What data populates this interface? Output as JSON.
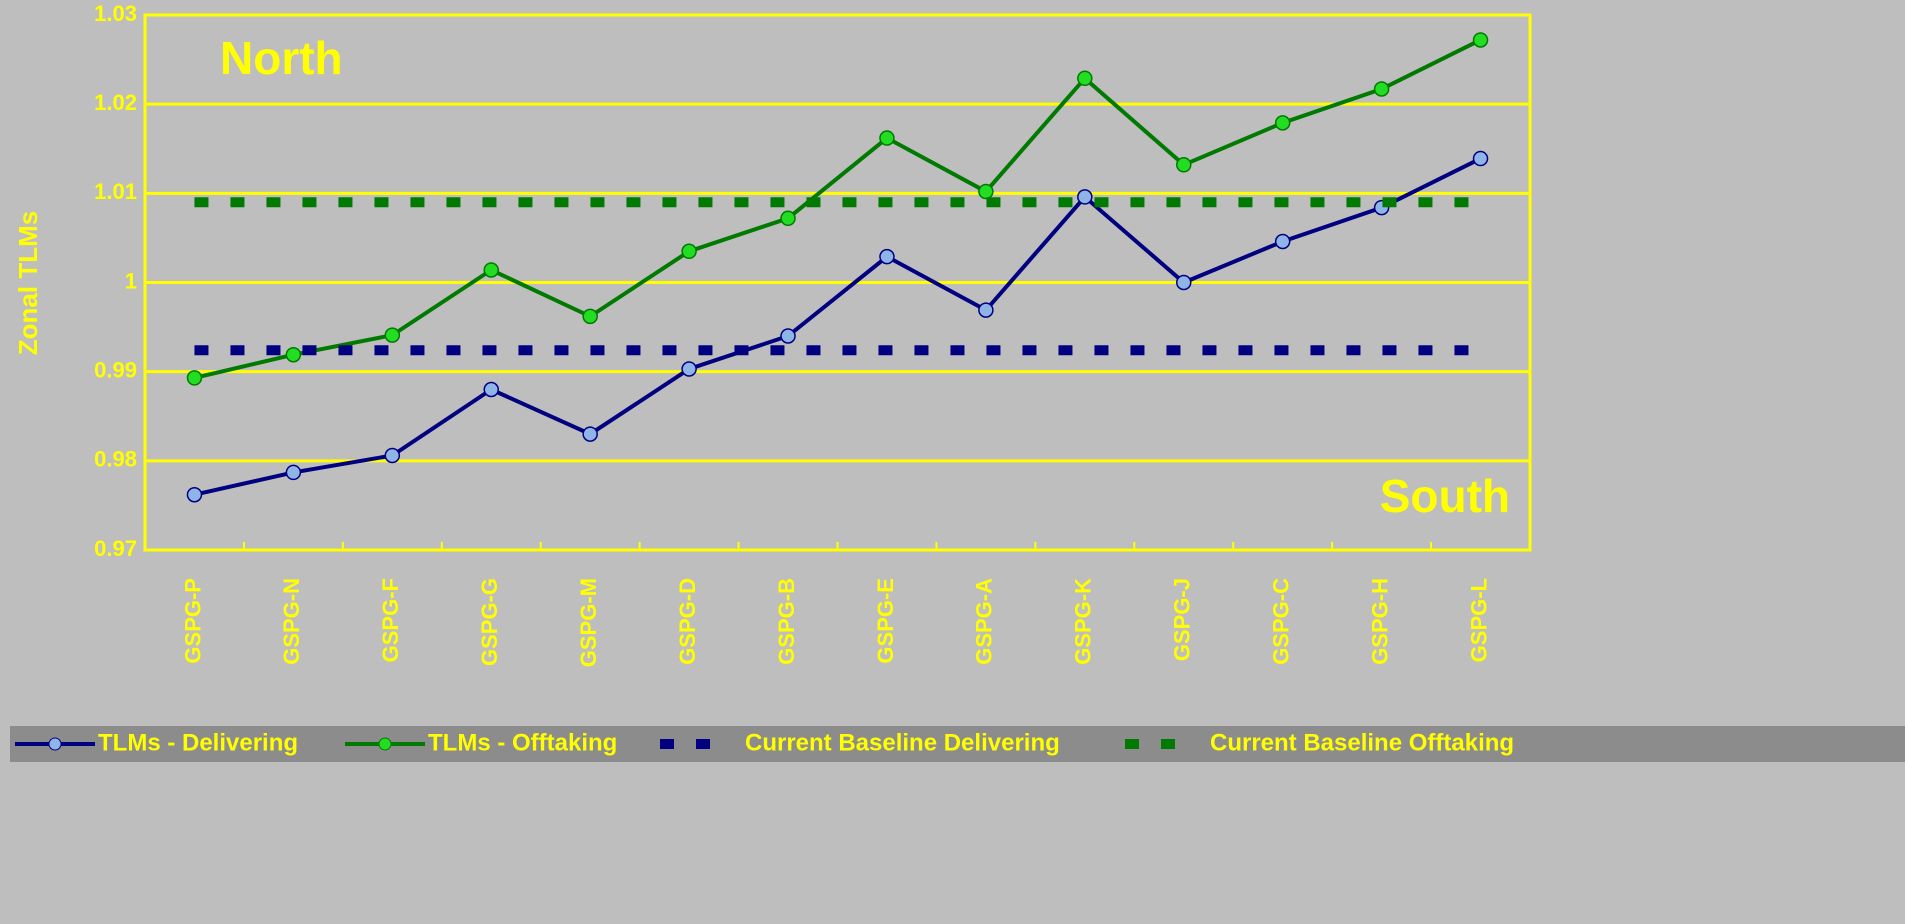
{
  "chart_data": {
    "type": "line",
    "ylabel": "Zonal TLMs",
    "annotations": [
      "North",
      "South"
    ],
    "categories": [
      "GSPG-P",
      "GSPG-N",
      "GSPG-F",
      "GSPG-G",
      "GSPG-M",
      "GSPG-D",
      "GSPG-B",
      "GSPG-E",
      "GSPG-A",
      "GSPG-K",
      "GSPG-J",
      "GSPG-C",
      "GSPG-H",
      "GSPG-L"
    ],
    "series": [
      {
        "name": "TLMs - Delivering",
        "color": "#000080",
        "marker_color": "#8fb4e8",
        "marker": true,
        "dashed": false,
        "values": [
          0.9762,
          0.9787,
          0.9806,
          0.988,
          0.983,
          0.9903,
          0.994,
          1.0029,
          0.9969,
          1.0096,
          1.0,
          1.0046,
          1.0084,
          1.0139
        ]
      },
      {
        "name": "TLMs - Offtaking",
        "color": "#007a00",
        "marker_color": "#22dd22",
        "marker": true,
        "dashed": false,
        "values": [
          0.9893,
          0.9919,
          0.9941,
          1.0014,
          0.9962,
          1.0035,
          1.0072,
          1.0162,
          1.0102,
          1.0229,
          1.0132,
          1.0179,
          1.0217,
          1.0272
        ]
      },
      {
        "name": "Current Baseline Delivering",
        "color": "#000080",
        "marker": false,
        "dashed": true,
        "values": [
          0.9924,
          0.9924,
          0.9924,
          0.9924,
          0.9924,
          0.9924,
          0.9924,
          0.9924,
          0.9924,
          0.9924,
          0.9924,
          0.9924,
          0.9924,
          0.9924
        ]
      },
      {
        "name": "Current Baseline Offtaking",
        "color": "#007a00",
        "marker": false,
        "dashed": true,
        "values": [
          1.009,
          1.009,
          1.009,
          1.009,
          1.009,
          1.009,
          1.009,
          1.009,
          1.009,
          1.009,
          1.009,
          1.009,
          1.009,
          1.009
        ]
      }
    ],
    "ylim": [
      0.97,
      1.03
    ],
    "yticks": [
      0.97,
      0.98,
      0.99,
      1,
      1.01,
      1.02,
      1.03
    ],
    "grid": true
  }
}
